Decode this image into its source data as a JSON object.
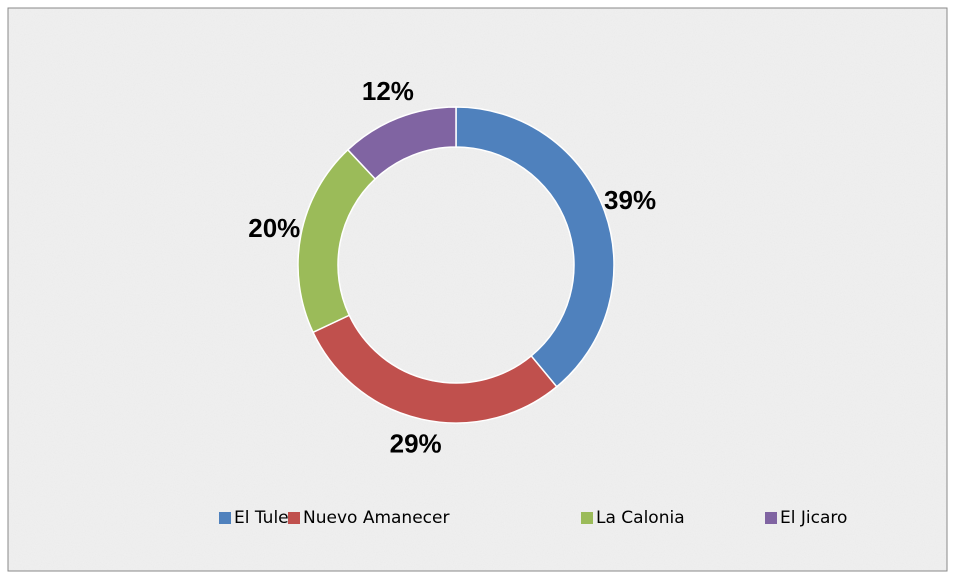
{
  "chart_data": {
    "type": "donut",
    "categories": [
      "El Tule",
      "Nuevo Amanecer",
      "La Calonia",
      "El Jicaro"
    ],
    "values": [
      39,
      29,
      20,
      12
    ],
    "value_labels": [
      "39%",
      "29%",
      "20%",
      "12%"
    ],
    "colors": [
      "#4f81bd",
      "#c0504d",
      "#9bbb59",
      "#8064a2"
    ],
    "legend": "bottom"
  }
}
